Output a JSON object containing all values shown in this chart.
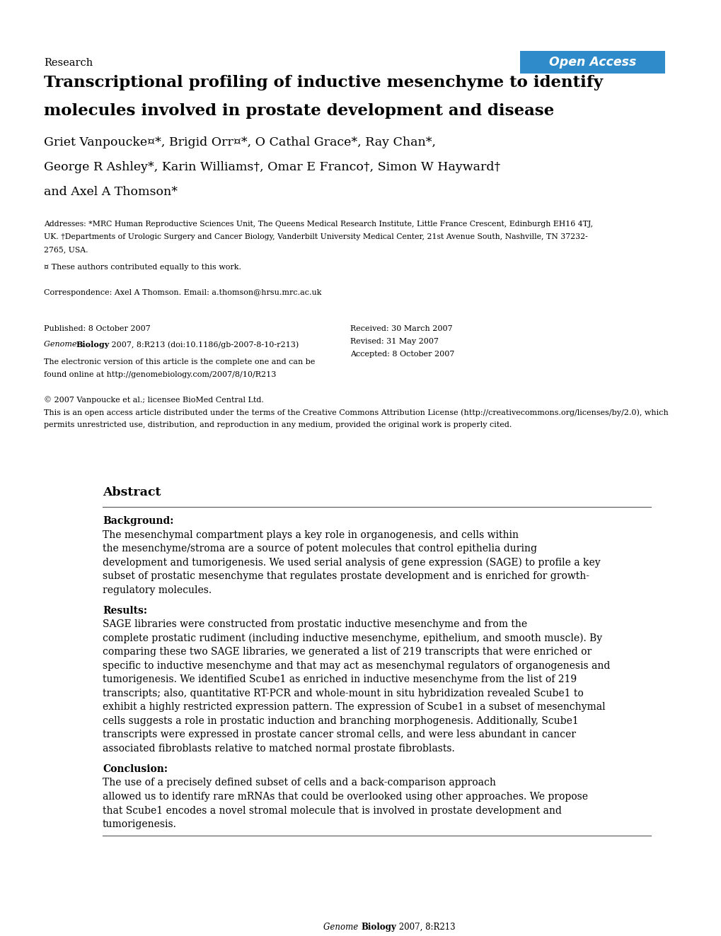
{
  "background_color": "#ffffff",
  "page_width": 10.2,
  "page_height": 13.24,
  "dpi": 100,
  "open_access_text": "Open Access",
  "open_access_bg": "#2f8bc9",
  "open_access_text_color": "#ffffff",
  "section_label": "Research",
  "title_line1": "Transcriptional profiling of inductive mesenchyme to identify",
  "title_line2": "molecules involved in prostate development and disease",
  "author_line1": "Griet Vanpoucke¤*, Brigid Orr¤*, O Cathal Grace*, Ray Chan*,",
  "author_line2": "George R Ashley*, Karin Williams†, Omar E Franco†, Simon W Hayward†",
  "author_line3": "and Axel A Thomson*",
  "address_line1": "Addresses: *MRC Human Reproductive Sciences Unit, The Queens Medical Research Institute, Little France Crescent, Edinburgh EH16 4TJ,",
  "address_line2": "UK. †Departments of Urologic Surgery and Cancer Biology, Vanderbilt University Medical Center, 21st Avenue South, Nashville, TN 37232-",
  "address_line3": "2765, USA.",
  "equal_contrib": "¤ These authors contributed equally to this work.",
  "correspondence": "Correspondence: Axel A Thomson. Email: a.thomson@hrsu.mrc.ac.uk",
  "published": "Published: 8 October 2007",
  "journal_ref_italic": "Genome ",
  "journal_ref_bold": "Biology",
  "journal_ref_rest": " 2007, 8:R213 (doi:10.1186/gb-2007-8-10-r213)",
  "electronic_line1": "The electronic version of this article is the complete one and can be",
  "electronic_line2": "found online at http://genomebiology.com/2007/8/10/R213",
  "received": "Received: 30 March 2007",
  "revised": "Revised: 31 May 2007",
  "accepted": "Accepted: 8 October 2007",
  "copyright_line1": "© 2007 Vanpoucke et al.; licensee BioMed Central Ltd.",
  "license_line1": "This is an open access article distributed under the terms of the Creative Commons Attribution License (http://creativecommons.org/licenses/by/2.0), which",
  "license_line2": "permits unrestricted use, distribution, and reproduction in any medium, provided the original work is properly cited.",
  "abstract_title": "Abstract",
  "bg_label": "Background:",
  "bg_body": "The mesenchymal compartment plays a key role in organogenesis, and cells within the mesenchyme/stroma are a source of potent molecules that control epithelia during development and tumorigenesis. We used serial analysis of gene expression (SAGE) to profile a key subset of prostatic mesenchyme that regulates prostate development and is enriched for growth-regulatory molecules.",
  "res_label": "Results:",
  "res_body": "SAGE libraries were constructed from prostatic inductive mesenchyme and from the complete prostatic rudiment (including inductive mesenchyme, epithelium, and smooth muscle). By comparing these two SAGE libraries, we generated a list of 219 transcripts that were enriched or specific to inductive mesenchyme and that may act as mesenchymal regulators of organogenesis and tumorigenesis. We identified Scube1 as enriched in inductive mesenchyme from the list of 219 transcripts; also, quantitative RT-PCR and whole-mount in situ hybridization revealed Scube1 to exhibit a highly restricted expression pattern. The expression of Scube1 in a subset of mesenchymal cells suggests a role in prostatic induction and branching morphogenesis. Additionally, Scube1 transcripts were expressed in prostate cancer stromal cells, and were less abundant in cancer associated fibroblasts relative to matched normal prostate fibroblasts.",
  "conc_label": "Conclusion:",
  "conc_body": "The use of a precisely defined subset of cells and a back-comparison approach allowed us to identify rare mRNAs that could be overlooked using other approaches. We propose that Scube1 encodes a novel stromal molecule that is involved in prostate development and tumorigenesis.",
  "footer": "Genome Biology 2007, 8:R213"
}
